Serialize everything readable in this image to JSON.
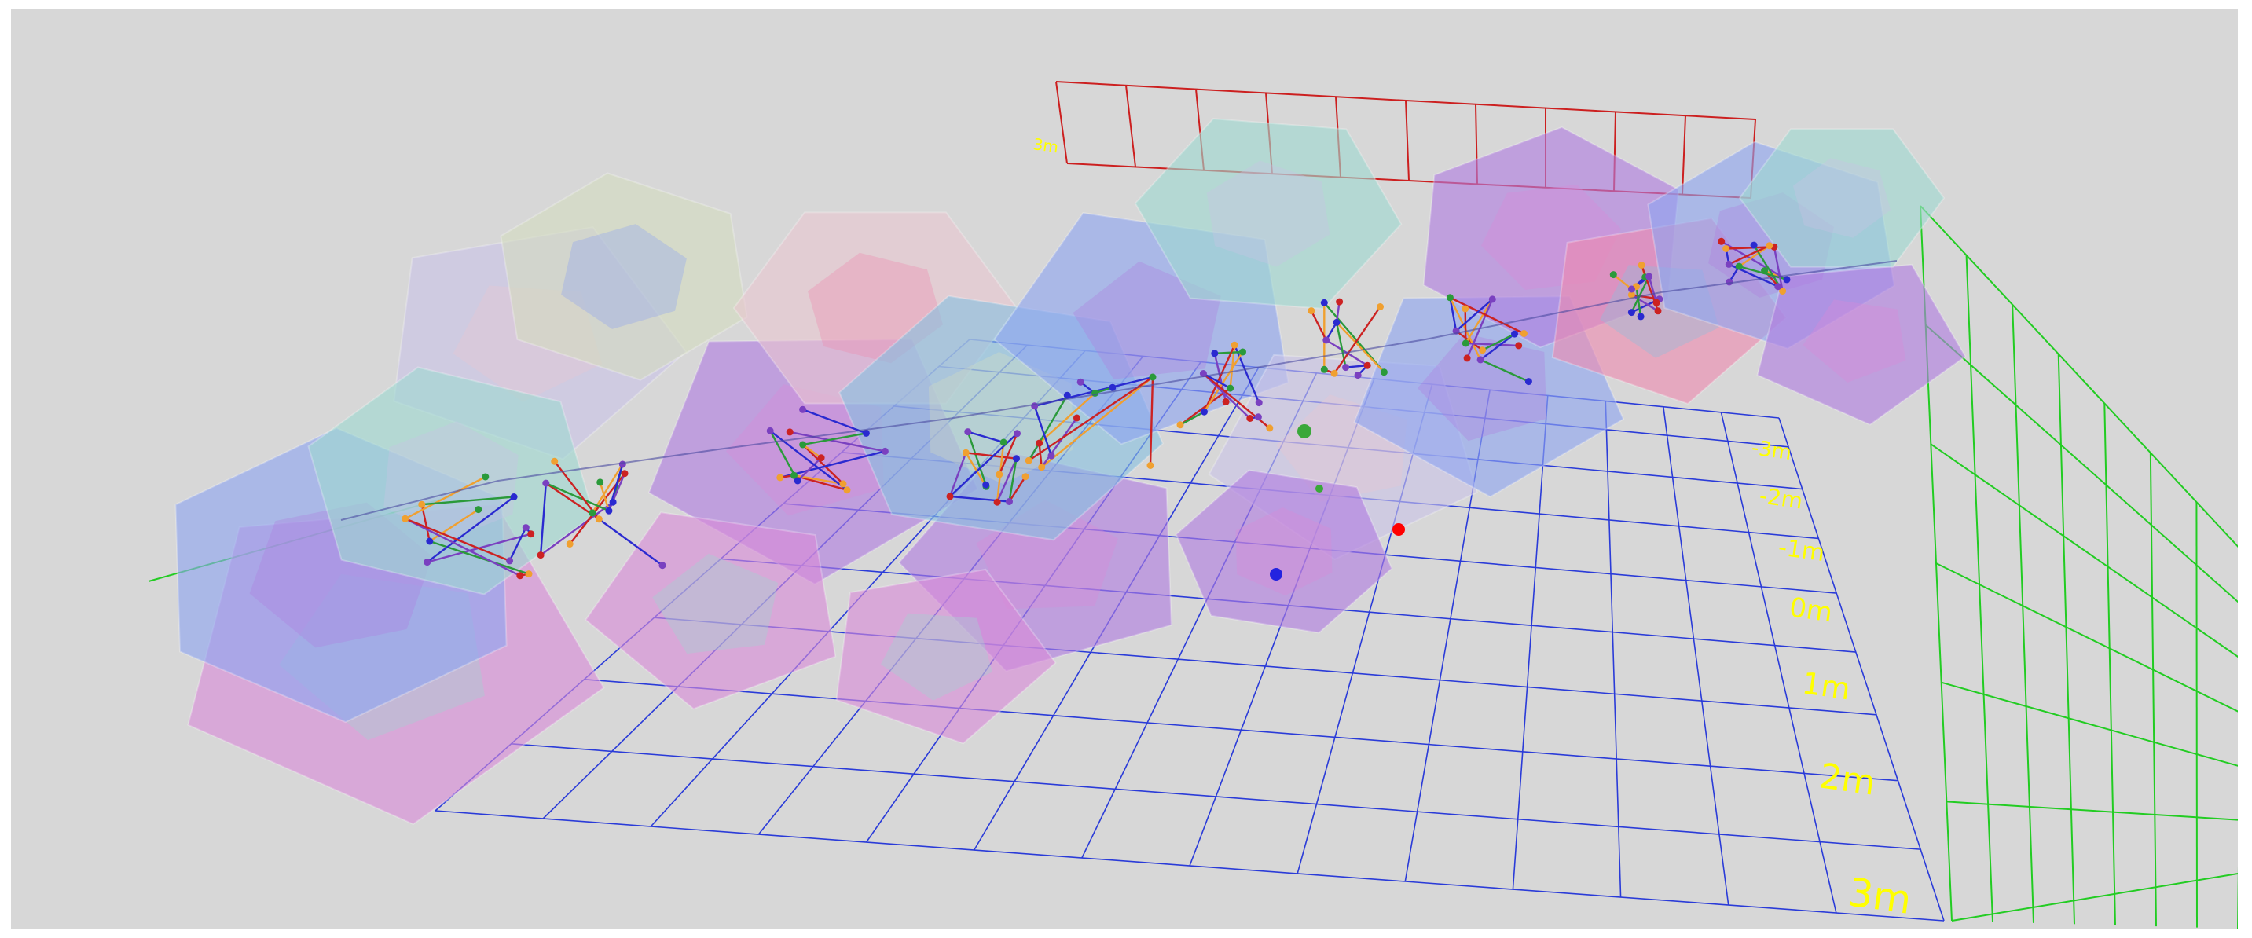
{
  "viewer": {
    "background": "#d7d7d7",
    "floor_grid_color": "#2a3bd8",
    "wall_grid_color": "#cc1f1f",
    "side_grid_color": "#22cc22",
    "axis_label_color": "#ffff00",
    "axis_labels": [
      "-3m",
      "-2m",
      "-1m",
      "0m",
      "1m",
      "2m",
      "3m"
    ],
    "top_axis_label": "3m",
    "cell_colors": [
      "#8ea4f0",
      "#b07de0",
      "#d98ad8",
      "#9ed8d0",
      "#c9c4e6",
      "#e9c6d0",
      "#ee8ab0",
      "#88c0e0",
      "#d4dcc0"
    ],
    "wire_colors": [
      "#cc2222",
      "#2a2ad0",
      "#f0a030",
      "#7a40c0",
      "#2a9a3a"
    ],
    "marker_colors": {
      "origin": "#ff0000",
      "ball_blue": "#2323e0",
      "ball_green": "#3aa83a"
    }
  }
}
